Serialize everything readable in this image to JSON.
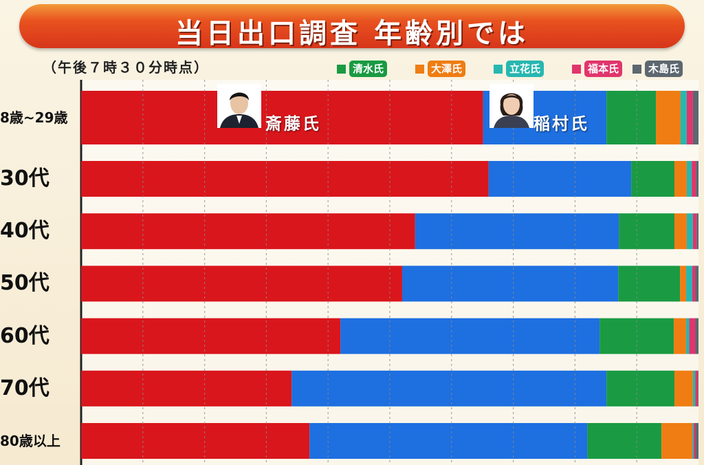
{
  "title": "当日出口調査 年齢別では",
  "time_note": "（午後７時３０分時点）",
  "colors": {
    "saito": "#d9161c",
    "inamura": "#1e6fe0",
    "shimizu": "#1a9a43",
    "osawa": "#ef7d13",
    "tachibana": "#27b7b0",
    "fukumoto": "#e0356d",
    "kijima": "#5d6770"
  },
  "labels": {
    "saito": "斎藤氏",
    "inamura": "稲村氏"
  },
  "chart_data": {
    "type": "bar",
    "orientation": "horizontal",
    "stacked": true,
    "title": "当日出口調査 年齢別では",
    "categories": [
      "8歳~29歳",
      "30代",
      "40代",
      "50代",
      "60代",
      "70代",
      "80歳以上"
    ],
    "xlim": [
      0,
      100
    ],
    "grid": true,
    "legend_position": "top-right",
    "series": [
      {
        "name": "斎藤氏",
        "key": "saito",
        "values": [
          65.1,
          66.0,
          54.1,
          52.0,
          42.0,
          34.1,
          37.0
        ]
      },
      {
        "name": "稲村氏",
        "key": "inamura",
        "values": [
          20.0,
          23.1,
          33.0,
          35.0,
          42.0,
          51.0,
          45.0
        ]
      },
      {
        "name": "清水氏",
        "key": "shimizu",
        "values": [
          8.0,
          7.0,
          9.0,
          10.0,
          12.0,
          11.0,
          12.0
        ]
      },
      {
        "name": "大澤氏",
        "key": "osawa",
        "values": [
          4.0,
          2.0,
          2.0,
          1.0,
          2.0,
          3.0,
          5.0
        ]
      },
      {
        "name": "立花氏",
        "key": "tachibana",
        "values": [
          1.0,
          0.8,
          1.0,
          1.0,
          0.5,
          0.4,
          0.2
        ]
      },
      {
        "name": "福本氏",
        "key": "fukumoto",
        "values": [
          1.0,
          0.7,
          0.6,
          0.5,
          1.0,
          0.4,
          0.3
        ]
      },
      {
        "name": "木島氏",
        "key": "kijima",
        "values": [
          0.9,
          0.4,
          0.3,
          0.5,
          0.5,
          0.1,
          0.5
        ]
      }
    ]
  }
}
